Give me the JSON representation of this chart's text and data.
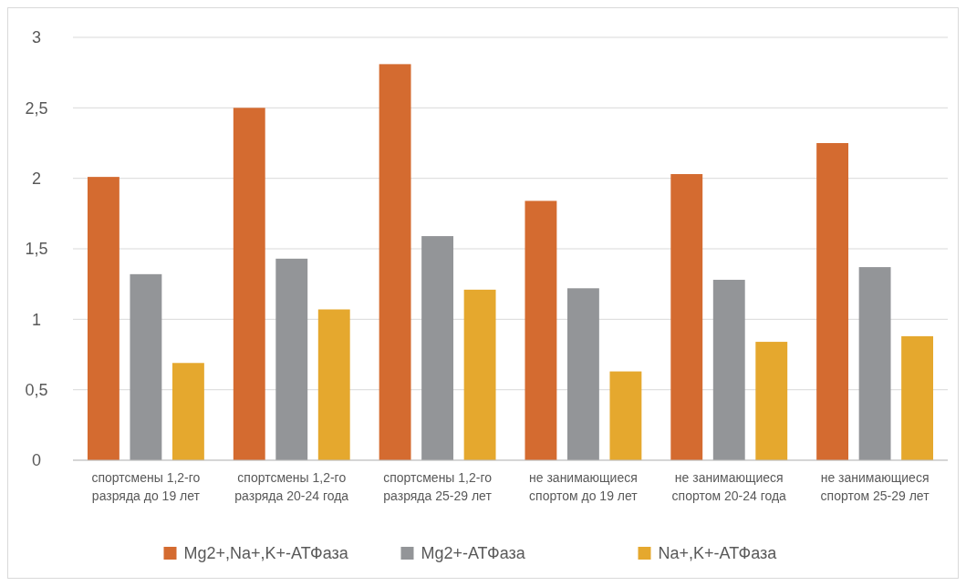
{
  "chart_data": {
    "type": "bar",
    "categories": [
      "спортсмены 1,2-го разряда до 19 лет",
      "спортсмены 1,2-го разряда 20-24 года",
      "спортсмены 1,2-го разряда 25-29 лет",
      "не занимающиеся спортом до 19 лет",
      "не занимающиеся спортом 20-24 года",
      "не занимающиеся спортом 25-29 лет"
    ],
    "series": [
      {
        "name": "Mg2+,Na+,K+-АТФаза",
        "color": "#d46b30",
        "values": [
          2.01,
          2.5,
          2.81,
          1.84,
          2.03,
          2.25
        ]
      },
      {
        "name": "Mg2+-АТФаза",
        "color": "#939598",
        "values": [
          1.32,
          1.43,
          1.59,
          1.22,
          1.28,
          1.37
        ]
      },
      {
        "name": "Na+,K+-АТФаза",
        "color": "#e5a82e",
        "values": [
          0.69,
          1.07,
          1.21,
          0.63,
          0.84,
          0.88
        ]
      }
    ],
    "ylim": [
      0,
      3
    ],
    "yticks": [
      0,
      {
        "value": 0.5,
        "label": "0,5"
      },
      1,
      {
        "value": 1.5,
        "label": "1,5"
      },
      2,
      {
        "value": 2.5,
        "label": "2,5"
      },
      3
    ],
    "grid": "y",
    "legend": "bottom"
  }
}
